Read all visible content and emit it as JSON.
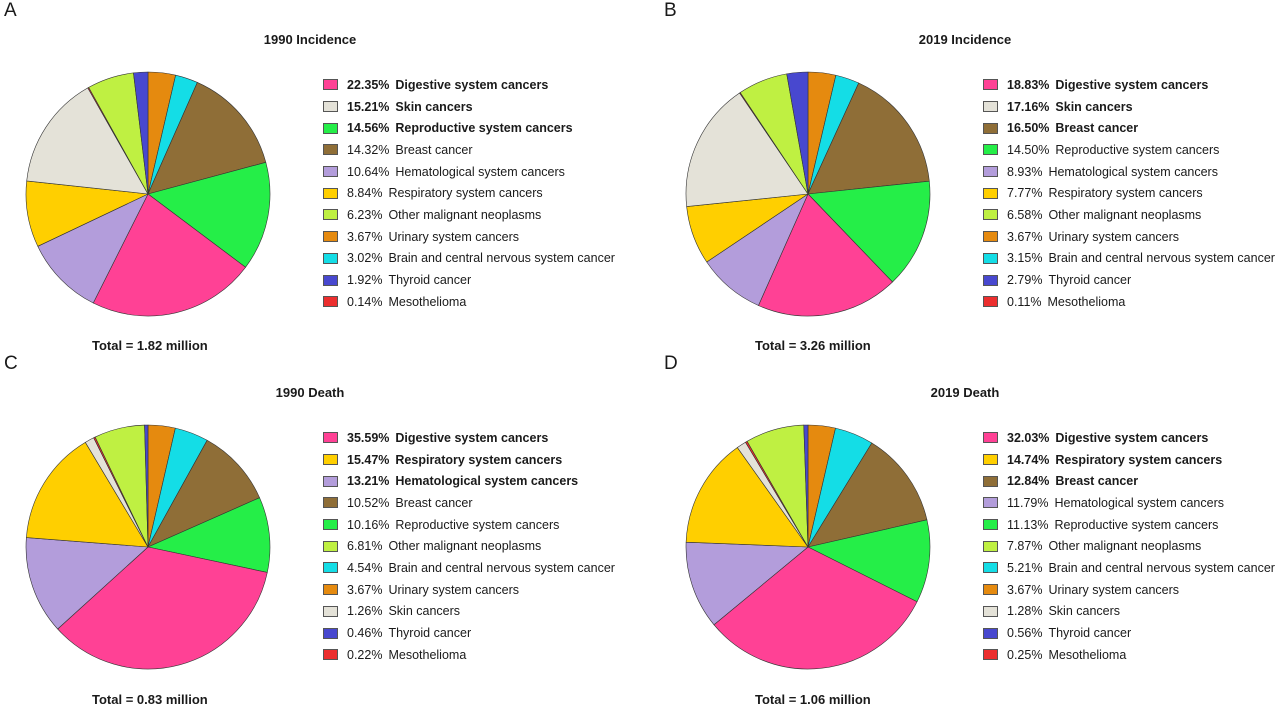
{
  "colors": {
    "Digestive system cancers": "#ff4195",
    "Skin cancers": "#e4e2d8",
    "Reproductive system cancers": "#25ee48",
    "Breast cancer": "#8f6e37",
    "Hematological system cancers": "#b39ddb",
    "Respiratory system cancers": "#ffcf00",
    "Other malignant neoplasms": "#bff042",
    "Urinary system cancers": "#e58a0f",
    "Brain and central nervous system cancer": "#14dde6",
    "Thyroid cancer": "#4848cf",
    "Mesothelioma": "#ec2e2e"
  },
  "chart_data": [
    {
      "panel": "A",
      "type": "pie",
      "title": "1990 Incidence",
      "total_label": "Total = 1.82 million",
      "bold_top": 3,
      "slices": [
        {
          "label": "Digestive system cancers",
          "value": 22.35,
          "pct": "22.35%"
        },
        {
          "label": "Skin cancers",
          "value": 15.21,
          "pct": "15.21%"
        },
        {
          "label": "Reproductive system cancers",
          "value": 14.56,
          "pct": "14.56%"
        },
        {
          "label": "Breast cancer",
          "value": 14.32,
          "pct": "14.32%"
        },
        {
          "label": "Hematological system cancers",
          "value": 10.64,
          "pct": "10.64%"
        },
        {
          "label": "Respiratory system cancers",
          "value": 8.84,
          "pct": "8.84%"
        },
        {
          "label": "Other malignant neoplasms",
          "value": 6.23,
          "pct": "6.23%"
        },
        {
          "label": "Urinary system cancers",
          "value": 3.67,
          "pct": "3.67%"
        },
        {
          "label": "Brain and central nervous system cancer",
          "value": 3.02,
          "pct": "3.02%"
        },
        {
          "label": "Thyroid cancer",
          "value": 1.92,
          "pct": "1.92%"
        },
        {
          "label": "Mesothelioma",
          "value": 0.14,
          "pct": "0.14%"
        }
      ],
      "pie_order": [
        "Urinary system cancers",
        "Brain and central nervous system cancer",
        "Breast cancer",
        "Reproductive system cancers",
        "Digestive system cancers",
        "Hematological system cancers",
        "Respiratory system cancers",
        "Skin cancers",
        "Mesothelioma",
        "Other malignant neoplasms",
        "Thyroid cancer"
      ]
    },
    {
      "panel": "B",
      "type": "pie",
      "title": "2019 Incidence",
      "total_label": "Total = 3.26 million",
      "bold_top": 3,
      "slices": [
        {
          "label": "Digestive system cancers",
          "value": 18.83,
          "pct": "18.83%"
        },
        {
          "label": "Skin cancers",
          "value": 17.16,
          "pct": "17.16%"
        },
        {
          "label": "Breast cancer",
          "value": 16.5,
          "pct": "16.50%"
        },
        {
          "label": "Reproductive system cancers",
          "value": 14.5,
          "pct": "14.50%"
        },
        {
          "label": "Hematological system cancers",
          "value": 8.93,
          "pct": "8.93%"
        },
        {
          "label": "Respiratory system cancers",
          "value": 7.77,
          "pct": "7.77%"
        },
        {
          "label": "Other malignant neoplasms",
          "value": 6.58,
          "pct": "6.58%"
        },
        {
          "label": "Urinary system cancers",
          "value": 3.67,
          "pct": "3.67%"
        },
        {
          "label": "Brain and central nervous system cancer",
          "value": 3.15,
          "pct": "3.15%"
        },
        {
          "label": "Thyroid cancer",
          "value": 2.79,
          "pct": "2.79%"
        },
        {
          "label": "Mesothelioma",
          "value": 0.11,
          "pct": "0.11%"
        }
      ],
      "pie_order": [
        "Urinary system cancers",
        "Brain and central nervous system cancer",
        "Breast cancer",
        "Reproductive system cancers",
        "Digestive system cancers",
        "Hematological system cancers",
        "Respiratory system cancers",
        "Skin cancers",
        "Mesothelioma",
        "Other malignant neoplasms",
        "Thyroid cancer"
      ]
    },
    {
      "panel": "C",
      "type": "pie",
      "title": "1990 Death",
      "total_label": "Total = 0.83 million",
      "bold_top": 3,
      "slices": [
        {
          "label": "Digestive system cancers",
          "value": 35.59,
          "pct": "35.59%"
        },
        {
          "label": "Respiratory system cancers",
          "value": 15.47,
          "pct": "15.47%"
        },
        {
          "label": "Hematological system cancers",
          "value": 13.21,
          "pct": "13.21%"
        },
        {
          "label": "Breast cancer",
          "value": 10.52,
          "pct": "10.52%"
        },
        {
          "label": "Reproductive system cancers",
          "value": 10.16,
          "pct": "10.16%"
        },
        {
          "label": "Other malignant neoplasms",
          "value": 6.81,
          "pct": "6.81%"
        },
        {
          "label": "Brain and central nervous system cancer",
          "value": 4.54,
          "pct": "4.54%"
        },
        {
          "label": "Urinary system cancers",
          "value": 3.67,
          "pct": "3.67%"
        },
        {
          "label": "Skin cancers",
          "value": 1.26,
          "pct": "1.26%"
        },
        {
          "label": "Thyroid cancer",
          "value": 0.46,
          "pct": "0.46%"
        },
        {
          "label": "Mesothelioma",
          "value": 0.22,
          "pct": "0.22%"
        }
      ],
      "pie_order": [
        "Urinary system cancers",
        "Brain and central nervous system cancer",
        "Breast cancer",
        "Reproductive system cancers",
        "Digestive system cancers",
        "Hematological system cancers",
        "Respiratory system cancers",
        "Skin cancers",
        "Mesothelioma",
        "Other malignant neoplasms",
        "Thyroid cancer"
      ]
    },
    {
      "panel": "D",
      "type": "pie",
      "title": "2019 Death",
      "total_label": "Total = 1.06 million",
      "bold_top": 3,
      "slices": [
        {
          "label": "Digestive system cancers",
          "value": 32.03,
          "pct": "32.03%"
        },
        {
          "label": "Respiratory system cancers",
          "value": 14.74,
          "pct": "14.74%"
        },
        {
          "label": "Breast cancer",
          "value": 12.84,
          "pct": "12.84%"
        },
        {
          "label": "Hematological system cancers",
          "value": 11.79,
          "pct": "11.79%"
        },
        {
          "label": "Reproductive system cancers",
          "value": 11.13,
          "pct": "11.13%"
        },
        {
          "label": "Other malignant neoplasms",
          "value": 7.87,
          "pct": "7.87%"
        },
        {
          "label": "Brain and central nervous system cancer",
          "value": 5.21,
          "pct": "5.21%"
        },
        {
          "label": "Urinary system cancers",
          "value": 3.67,
          "pct": "3.67%"
        },
        {
          "label": "Skin cancers",
          "value": 1.28,
          "pct": "1.28%"
        },
        {
          "label": "Thyroid cancer",
          "value": 0.56,
          "pct": "0.56%"
        },
        {
          "label": "Mesothelioma",
          "value": 0.25,
          "pct": "0.25%"
        }
      ],
      "pie_order": [
        "Urinary system cancers",
        "Brain and central nervous system cancer",
        "Breast cancer",
        "Reproductive system cancers",
        "Digestive system cancers",
        "Hematological system cancers",
        "Respiratory system cancers",
        "Skin cancers",
        "Mesothelioma",
        "Other malignant neoplasms",
        "Thyroid cancer"
      ]
    }
  ]
}
